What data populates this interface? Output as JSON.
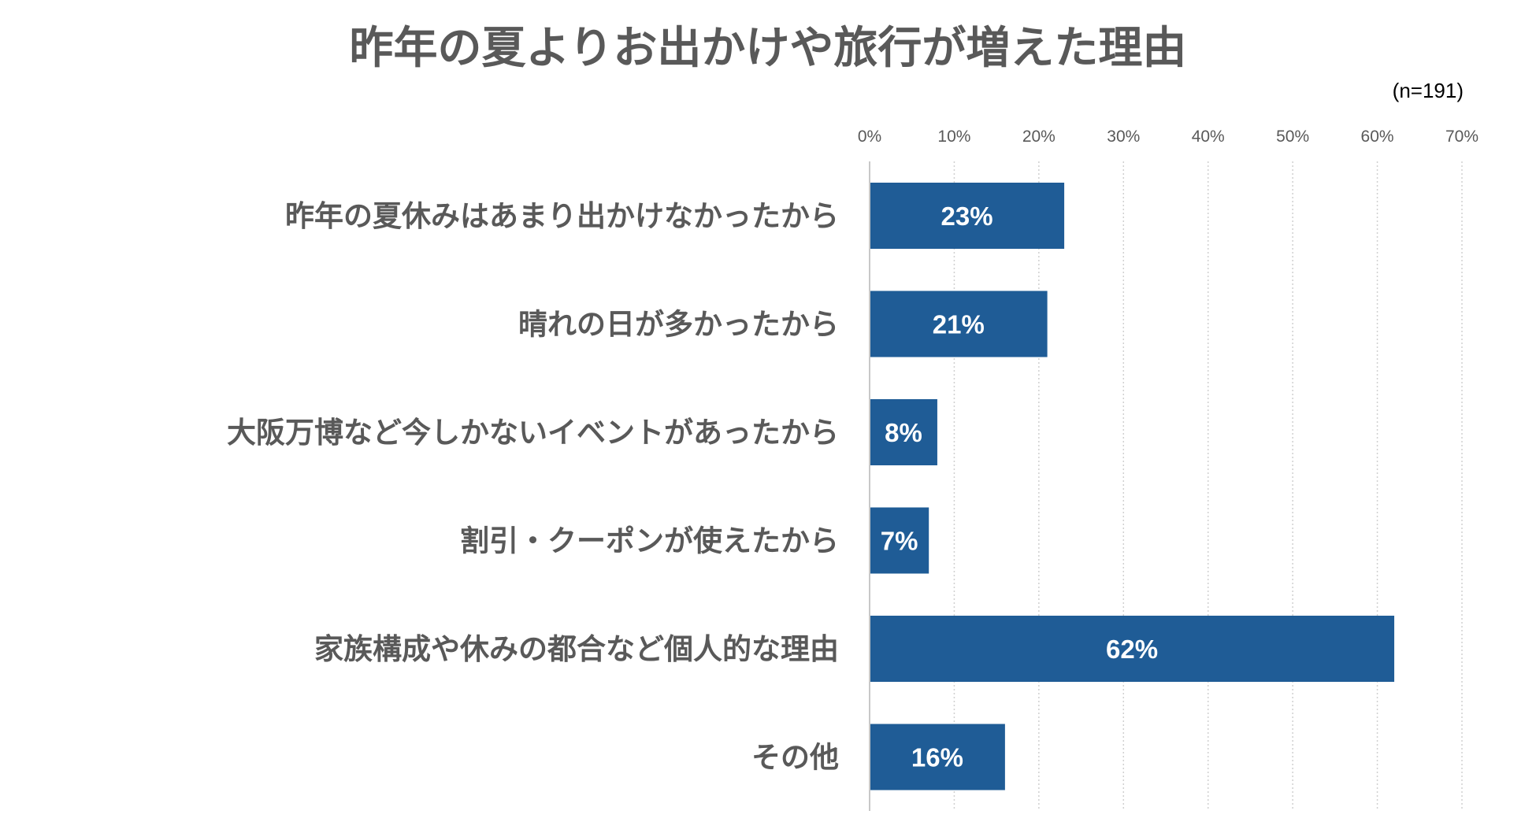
{
  "chart_data": {
    "type": "bar",
    "orientation": "horizontal",
    "title": "昨年の夏よりお出かけや旅行が増えた理由",
    "sample_note": "(n=191)",
    "categories": [
      "昨年の夏休みはあまり出かけなかったから",
      "晴れの日が多かったから",
      "大阪万博など今しかないイベントがあったから",
      "割引・クーポンが使えたから",
      "家族構成や休みの都合など個人的な理由",
      "その他"
    ],
    "values": [
      23,
      21,
      8,
      7,
      62,
      16
    ],
    "data_labels": [
      "23%",
      "21%",
      "8%",
      "7%",
      "62%",
      "16%"
    ],
    "unit": "%",
    "xlim": [
      0,
      70
    ],
    "x_ticks": [
      0,
      10,
      20,
      30,
      40,
      50,
      60,
      70
    ],
    "x_tick_labels": [
      "0%",
      "10%",
      "20%",
      "30%",
      "40%",
      "50%",
      "60%",
      "70%"
    ],
    "axis_position": "top",
    "grid": true,
    "legend": "none",
    "bar_color": "#1f5c96"
  }
}
